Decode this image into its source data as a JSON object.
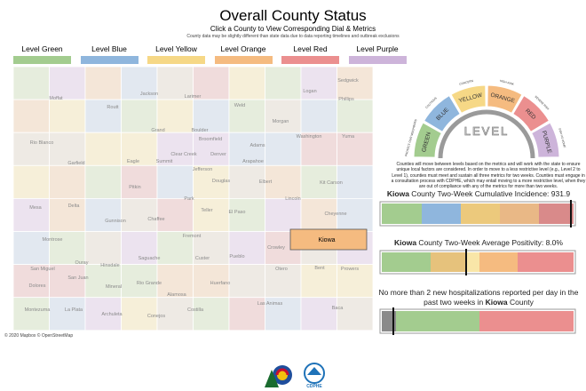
{
  "header": {
    "title": "Overall County Status",
    "subtitle": "Click a County to View Corresponding Dial & Metrics",
    "note": "County data may be slightly different than state data due to data reporting timelines and outbreak exclusions"
  },
  "legend": [
    {
      "label": "Level Green",
      "color": "#a3cc8f"
    },
    {
      "label": "Level Blue",
      "color": "#8fb6dd"
    },
    {
      "label": "Level Yellow",
      "color": "#f6d886"
    },
    {
      "label": "Level Orange",
      "color": "#f5bb80"
    },
    {
      "label": "Level Red",
      "color": "#eb8f8f"
    },
    {
      "label": "Level Purple",
      "color": "#cdb4da"
    }
  ],
  "map": {
    "counties": [
      "Moffat",
      "Routt",
      "Jackson",
      "Larimer",
      "Weld",
      "Logan",
      "Sedgwick",
      "Phillips",
      "Rio Blanco",
      "Grand",
      "Boulder",
      "Broomfield",
      "Morgan",
      "Adams",
      "Washington",
      "Yuma",
      "Garfield",
      "Eagle",
      "Summit",
      "Clear Creek",
      "Denver",
      "Arapahoe",
      "Jefferson",
      "Douglas",
      "Elbert",
      "Kit Carson",
      "Mesa",
      "Delta",
      "Pitkin",
      "Gunnison",
      "Park",
      "Teller",
      "El Paso",
      "Lincoln",
      "Cheyenne",
      "Chaffee",
      "Fremont",
      "Montrose",
      "Ouray",
      "Hinsdale",
      "Saguache",
      "Custer",
      "Pueblo",
      "Crowley",
      "Otero",
      "Bent",
      "Prowers",
      "San Miguel",
      "Dolores",
      "San Juan",
      "Mineral",
      "Rio Grande",
      "Alamosa",
      "Huerfano",
      "Montezuma",
      "La Plata",
      "Archuleta",
      "Conejos",
      "Costilla",
      "Las Animas",
      "Baca"
    ],
    "selected": "Kiowa",
    "attribution": "© 2020 Mapbox © OpenStreetMap"
  },
  "dial": {
    "segments": [
      "GREEN",
      "BLUE",
      "YELLOW",
      "ORANGE",
      "RED",
      "PURPLE"
    ],
    "captions": [
      "PROTECT OUR NEIGHBORS",
      "CAUTIOUS",
      "CONCERN",
      "HIGH RISK",
      "SEVERE RISK",
      "STAY AT HOME"
    ],
    "center": "LEVEL"
  },
  "description": "Counties will move between levels based on the metrics and will work with the state to ensure unique local factors are considered. In order to move to a less restrictive level (e.g., Level 2 to Level 1), counties must meet and sustain all three metrics for two weeks. Counties must engage in a consultation process with CDPHE, which may entail moving to a more restrictive level, when they are out of compliance with any of the metrics for more than two weeks.",
  "metrics": [
    {
      "county": "Kiowa",
      "label": " County Two-Week Cumulative Incidence: ",
      "value": "931.9"
    },
    {
      "county": "Kiowa",
      "label": " County Two-Week Average Positivity: ",
      "value": "8.0%"
    },
    {
      "prefix": "No more than 2 new hospitalizations reported per day in the past two weeks in ",
      "county": "Kiowa",
      "suffix": " County"
    }
  ],
  "footer": {
    "logo_text": "CDPHE"
  }
}
